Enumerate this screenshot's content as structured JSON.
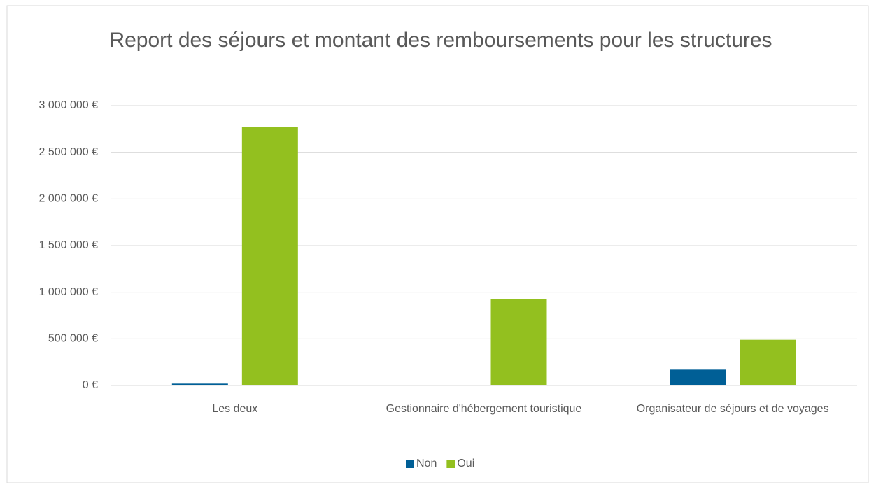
{
  "chart_data": {
    "type": "bar",
    "title": "Report des séjours et montant des remboursements pour les structures",
    "categories": [
      "Les deux",
      "Gestionnaire d'hébergement touristique",
      "Organisateur de séjours et de voyages"
    ],
    "series": [
      {
        "name": "Non",
        "color": "#005f96",
        "values": [
          20000,
          0,
          170000
        ]
      },
      {
        "name": "Oui",
        "color": "#93c01f",
        "values": [
          2775000,
          930000,
          490000
        ]
      }
    ],
    "ylim": [
      0,
      3000000
    ],
    "yticks": [
      {
        "value": 0,
        "label": "0 €"
      },
      {
        "value": 500000,
        "label": "500 000 €"
      },
      {
        "value": 1000000,
        "label": "1 000 000 €"
      },
      {
        "value": 1500000,
        "label": "1 500 000 €"
      },
      {
        "value": 2000000,
        "label": "2 000 000 €"
      },
      {
        "value": 2500000,
        "label": "2 500 000 €"
      },
      {
        "value": 3000000,
        "label": "3 000 000 €"
      }
    ],
    "grid": true,
    "legend": "bottom"
  }
}
